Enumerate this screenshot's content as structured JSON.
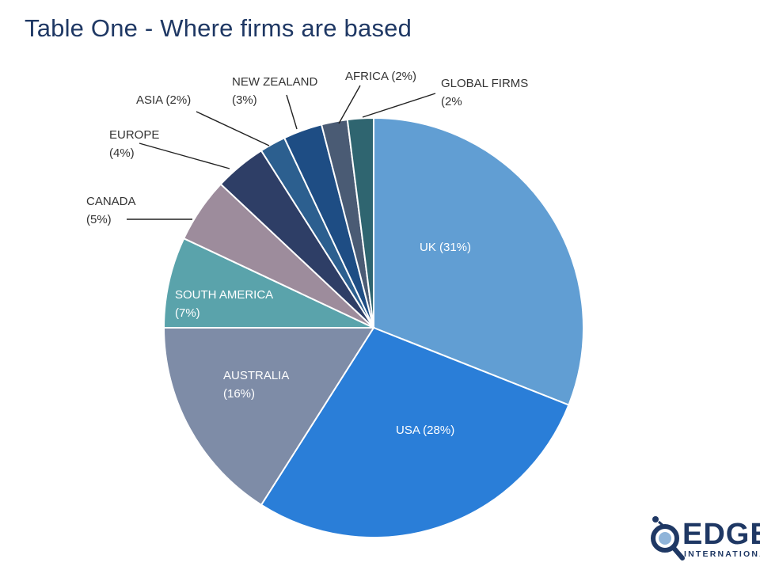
{
  "slide": {
    "title": "Table One - Where firms are based"
  },
  "chart_data": {
    "type": "pie",
    "title": "Table One - Where firms are based",
    "slices": [
      {
        "label": "UK (31%)",
        "value": 31,
        "color": "#619ed3",
        "label_inside": true,
        "label_color": "#ffffff"
      },
      {
        "label": "USA (28%)",
        "value": 28,
        "color": "#2a7ed8",
        "label_inside": true,
        "label_color": "#ffffff"
      },
      {
        "label": "AUSTRALIA (16%)",
        "value": 16,
        "color": "#7e8ca7",
        "label_inside": true,
        "label_color": "#ffffff"
      },
      {
        "label": "SOUTH AMERICA (7%)",
        "value": 7,
        "color": "#5aa3ab",
        "label_inside": true,
        "label_color": "#ffffff"
      },
      {
        "label": "CANADA (5%)",
        "value": 5,
        "color": "#9d8c9c",
        "label_inside": false,
        "label_color": "#333333"
      },
      {
        "label": "EUROPE (4%)",
        "value": 4,
        "color": "#2e3e66",
        "label_inside": false,
        "label_color": "#333333"
      },
      {
        "label": "ASIA (2%)",
        "value": 2,
        "color": "#2c5f8f",
        "label_inside": false,
        "label_color": "#333333"
      },
      {
        "label": "NEW ZEALAND (3%)",
        "value": 3,
        "color": "#1e4d84",
        "label_inside": false,
        "label_color": "#333333"
      },
      {
        "label": "AFRICA (2%)",
        "value": 2,
        "color": "#4a5b74",
        "label_inside": false,
        "label_color": "#333333"
      },
      {
        "label": "GLOBAL FIRMS (2%",
        "value": 2,
        "color": "#2f6570",
        "label_inside": false,
        "label_color": "#333333"
      }
    ]
  },
  "logo": {
    "word": "EDGE",
    "sub": "INTERNATIONAL"
  }
}
